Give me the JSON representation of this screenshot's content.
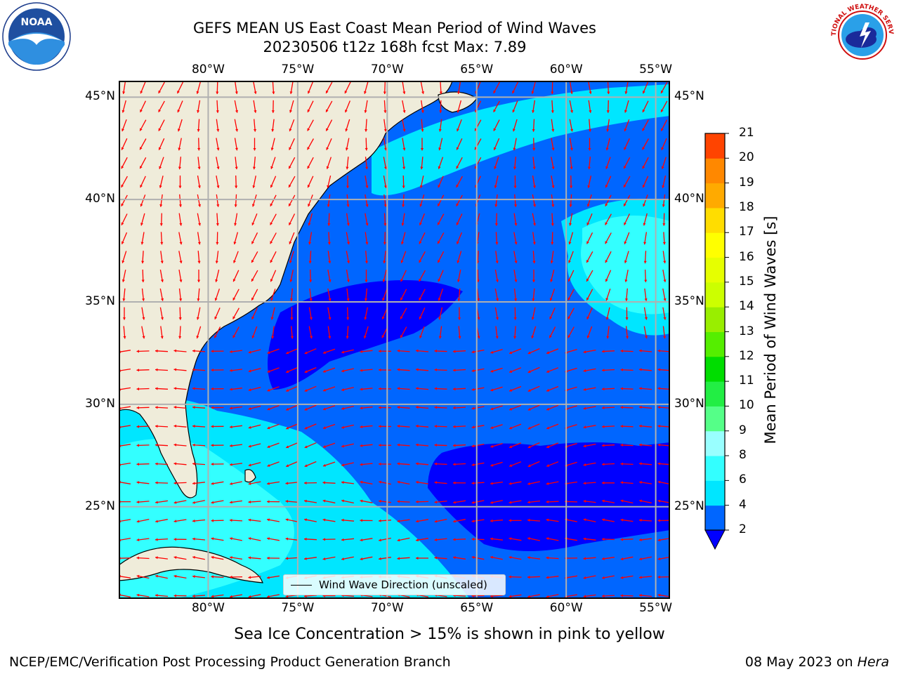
{
  "title": {
    "line1": "GEFS MEAN US East Coast Mean Period of Wind Waves",
    "line2": "20230506 t12z 168h fcst   Max: 7.89"
  },
  "logos": {
    "noaa_text": "NOAA",
    "nws_text": "NATIONAL WEATHER SERVICE"
  },
  "axes": {
    "lon_labels": [
      "80°W",
      "75°W",
      "70°W",
      "65°W",
      "60°W",
      "55°W"
    ],
    "lat_labels": [
      "45°N",
      "40°N",
      "35°N",
      "30°N",
      "25°N"
    ]
  },
  "map": {
    "extent": {
      "lon_min": -85,
      "lon_max": -54.2,
      "lat_min": 20.5,
      "lat_max": 45.8
    },
    "ocean_colors": {
      "c2_4": "#0066ff",
      "c4_6": "#00e6ff",
      "c6_8": "#33ffff",
      "below2": "#0000ff"
    },
    "land_color": "#efecda",
    "grid_color": "#b0b0b0",
    "arrow_color": "#ff0000"
  },
  "legend": {
    "label": "Wind Wave Direction (unscaled)"
  },
  "colorbar": {
    "title": "Mean Period of Wind Waves [s]",
    "tick_labels": [
      "2",
      "4",
      "6",
      "8",
      "9",
      "10",
      "11",
      "12",
      "13",
      "14",
      "15",
      "16",
      "17",
      "18",
      "19",
      "20",
      "21"
    ],
    "levels": [
      2,
      4,
      6,
      8,
      9,
      10,
      11,
      12,
      13,
      14,
      15,
      16,
      17,
      18,
      19,
      20,
      21
    ],
    "colors": [
      "#0066ff",
      "#00e6ff",
      "#33ffff",
      "#99ffff",
      "#55ff88",
      "#22ee44",
      "#00dd00",
      "#55ee00",
      "#99ee00",
      "#ccff00",
      "#e6ff00",
      "#ffff00",
      "#ffdd00",
      "#ffaa00",
      "#ff8800",
      "#ff4400",
      "#ff0000"
    ],
    "under_color": "#0000ff",
    "extend": "min"
  },
  "footer": {
    "sea_ice_note": "Sea Ice Concentration > 15% is shown in pink to yellow",
    "branch": "NCEP/EMC/Verification Post Processing Product Generation Branch",
    "date": "08 May 2023 on ",
    "machine": "Hera"
  }
}
